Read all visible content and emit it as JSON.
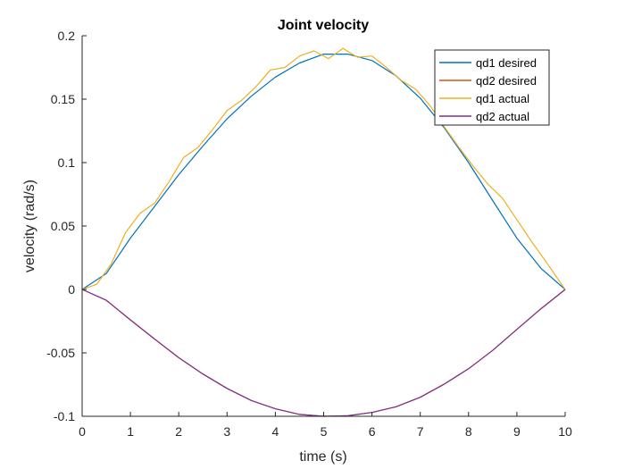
{
  "chart_data": {
    "type": "line",
    "title": "Joint velocity",
    "xlabel": "time (s)",
    "ylabel": "velocity (rad/s)",
    "xlim": [
      0,
      10
    ],
    "ylim": [
      -0.1,
      0.2
    ],
    "xticks": [
      0,
      1,
      2,
      3,
      4,
      5,
      6,
      7,
      8,
      9,
      10
    ],
    "xtick_labels": [
      "0",
      "1",
      "2",
      "3",
      "4",
      "5",
      "6",
      "7",
      "8",
      "9",
      "10"
    ],
    "yticks": [
      -0.1,
      -0.05,
      0,
      0.05,
      0.1,
      0.15,
      0.2
    ],
    "ytick_labels": [
      "-0.1",
      "-0.05",
      "0",
      "0.05",
      "0.1",
      "0.15",
      "0.2"
    ],
    "grid": false,
    "legend_position": "top-right",
    "series": [
      {
        "name": "qd1 desired",
        "color": "#0072BD",
        "x": [
          0,
          0.5,
          1,
          1.5,
          2,
          2.5,
          3,
          3.5,
          4,
          4.5,
          5,
          5.5,
          6,
          6.5,
          7,
          7.5,
          8,
          8.5,
          9,
          9.5,
          10
        ],
        "y": [
          0,
          0.0125,
          0.0405,
          0.0654,
          0.0905,
          0.1131,
          0.1345,
          0.1523,
          0.1674,
          0.1785,
          0.1855,
          0.1855,
          0.1804,
          0.1683,
          0.1508,
          0.1272,
          0.1,
          0.0701,
          0.0404,
          0.0166,
          0
        ]
      },
      {
        "name": "qd2 desired",
        "color": "#D95319",
        "x": [
          0,
          0.5,
          1,
          1.5,
          2,
          2.5,
          3,
          3.5,
          4,
          4.5,
          5,
          5.5,
          6,
          6.5,
          7,
          7.5,
          8,
          8.5,
          9,
          9.5,
          10
        ],
        "y": [
          0,
          -0.0085,
          -0.024,
          -0.0391,
          -0.0538,
          -0.0667,
          -0.078,
          -0.0875,
          -0.0941,
          -0.0985,
          -0.1,
          -0.0996,
          -0.097,
          -0.0925,
          -0.085,
          -0.0745,
          -0.0625,
          -0.048,
          -0.0315,
          -0.0152,
          0
        ]
      },
      {
        "name": "qd1 actual",
        "color": "#EDB120",
        "x": [
          0,
          0.3,
          0.6,
          0.9,
          1.2,
          1.5,
          1.8,
          2.1,
          2.4,
          2.7,
          3,
          3.3,
          3.6,
          3.9,
          4.2,
          4.5,
          4.8,
          5.1,
          5.4,
          5.7,
          6,
          6.3,
          6.6,
          6.9,
          7.2,
          7.5,
          7.8,
          8.1,
          8.4,
          8.7,
          9,
          9.3,
          9.6,
          10
        ],
        "y": [
          0,
          0.004,
          0.02,
          0.045,
          0.06,
          0.068,
          0.085,
          0.104,
          0.112,
          0.126,
          0.141,
          0.149,
          0.16,
          0.173,
          0.175,
          0.184,
          0.188,
          0.182,
          0.19,
          0.183,
          0.184,
          0.175,
          0.165,
          0.158,
          0.145,
          0.128,
          0.112,
          0.097,
          0.083,
          0.072,
          0.055,
          0.038,
          0.022,
          0
        ]
      },
      {
        "name": "qd2 actual",
        "color": "#7E2F8E",
        "x": [
          0,
          0.5,
          1,
          1.5,
          2,
          2.5,
          3,
          3.5,
          4,
          4.5,
          5,
          5.5,
          6,
          6.5,
          7,
          7.5,
          8,
          8.5,
          9,
          9.5,
          10
        ],
        "y": [
          0,
          -0.0085,
          -0.024,
          -0.0391,
          -0.0538,
          -0.0667,
          -0.078,
          -0.0875,
          -0.0941,
          -0.0985,
          -0.1,
          -0.0996,
          -0.097,
          -0.0925,
          -0.085,
          -0.0745,
          -0.0625,
          -0.048,
          -0.0315,
          -0.0152,
          0
        ]
      }
    ]
  }
}
